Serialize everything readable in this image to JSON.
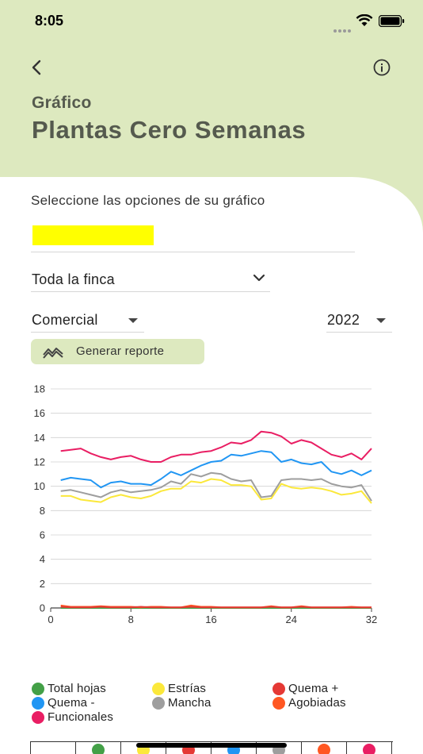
{
  "status_bar": {
    "time": "8:05"
  },
  "header": {
    "subtitle": "Gráfico",
    "title": "Plantas Cero Semanas"
  },
  "form": {
    "section_label": "Seleccione las opciones de su gráfico",
    "finca": "Toda la finca",
    "type": "Comercial",
    "year": "2022",
    "report_button": "Generar reporte"
  },
  "colors": {
    "accent": "#dde9bf",
    "total_hojas": "#43a047",
    "estrias": "#fbe83b",
    "quema_plus": "#e53935",
    "quema_minus": "#2196f3",
    "mancha": "#9e9e9e",
    "agobiadas": "#ff5722",
    "funcionales": "#e91e63"
  },
  "icons": {
    "back": "back-arrow-icon",
    "info": "info-icon",
    "finca_dropdown": "chevron-down-icon",
    "report": "chart-zigzag-icon"
  },
  "legend": [
    {
      "label": "Total hojas",
      "color": "#43a047"
    },
    {
      "label": "Estrías",
      "color": "#fbe83b"
    },
    {
      "label": "Quema +",
      "color": "#e53935"
    },
    {
      "label": "Quema -",
      "color": "#2196f3"
    },
    {
      "label": "Mancha",
      "color": "#9e9e9e"
    },
    {
      "label": "Agobiadas",
      "color": "#ff5722"
    },
    {
      "label": "Funcionales",
      "color": "#e91e63"
    }
  ],
  "table_dots": [
    "#43a047",
    "#fbe83b",
    "#e53935",
    "#2196f3",
    "#9e9e9e",
    "#ff5722",
    "#e91e63"
  ],
  "chart_data": {
    "type": "line",
    "title": "",
    "xlabel": "",
    "ylabel": "",
    "xlim": [
      0,
      32
    ],
    "ylim": [
      0,
      18
    ],
    "xticks": [
      0,
      8,
      16,
      24,
      32
    ],
    "yticks": [
      0,
      2,
      4,
      6,
      8,
      10,
      12,
      14,
      16,
      18
    ],
    "grid": true,
    "x": [
      1,
      2,
      3,
      4,
      5,
      6,
      7,
      8,
      9,
      10,
      11,
      12,
      13,
      14,
      15,
      16,
      17,
      18,
      19,
      20,
      21,
      22,
      23,
      24,
      25,
      26,
      27,
      28,
      29,
      30,
      31,
      32
    ],
    "series": [
      {
        "name": "Funcionales",
        "color": "#e91e63",
        "values": [
          12.9,
          13.0,
          13.1,
          12.7,
          12.4,
          12.2,
          12.4,
          12.5,
          12.2,
          12.0,
          12.0,
          12.4,
          12.6,
          12.6,
          12.8,
          12.9,
          13.2,
          13.6,
          13.5,
          13.8,
          14.5,
          14.4,
          14.1,
          13.5,
          13.8,
          13.6,
          13.1,
          12.6,
          12.4,
          12.7,
          12.2,
          13.1
        ]
      },
      {
        "name": "Quema -",
        "color": "#2196f3",
        "values": [
          10.5,
          10.7,
          10.6,
          10.5,
          9.9,
          10.3,
          10.4,
          10.2,
          10.2,
          10.1,
          10.6,
          11.2,
          10.9,
          11.3,
          11.7,
          12.0,
          12.1,
          12.6,
          12.5,
          12.7,
          12.9,
          12.8,
          12.0,
          12.2,
          11.9,
          11.8,
          12.0,
          11.2,
          11.0,
          11.3,
          10.9,
          11.3
        ]
      },
      {
        "name": "Mancha",
        "color": "#9e9e9e",
        "values": [
          9.6,
          9.7,
          9.5,
          9.3,
          9.1,
          9.5,
          9.7,
          9.5,
          9.6,
          9.7,
          9.9,
          10.4,
          10.2,
          11.0,
          10.8,
          11.1,
          11.0,
          10.6,
          10.4,
          10.5,
          9.1,
          9.2,
          10.5,
          10.6,
          10.6,
          10.5,
          10.6,
          10.2,
          10.0,
          9.9,
          10.1,
          8.8
        ]
      },
      {
        "name": "Estrías",
        "color": "#fbe83b",
        "values": [
          9.2,
          9.2,
          8.9,
          8.8,
          8.7,
          9.1,
          9.3,
          9.1,
          9.0,
          9.2,
          9.6,
          9.8,
          9.8,
          10.4,
          10.3,
          10.6,
          10.5,
          10.1,
          10.1,
          10.0,
          8.9,
          9.0,
          10.2,
          9.9,
          9.8,
          9.9,
          9.8,
          9.6,
          9.3,
          9.4,
          9.6,
          8.6
        ]
      },
      {
        "name": "Quema +",
        "color": "#e53935",
        "values": [
          0.1,
          0.05,
          0.05,
          0.05,
          0.1,
          0.05,
          0.05,
          0.05,
          0.1,
          0.05,
          0.05,
          0.05,
          0.05,
          0.1,
          0.05,
          0.05,
          0.05,
          0.05,
          0.05,
          0.05,
          0.05,
          0.1,
          0.05,
          0.05,
          0.1,
          0.05,
          0.05,
          0.05,
          0.05,
          0.05,
          0.05,
          0.05
        ]
      },
      {
        "name": "Agobiadas",
        "color": "#ff5722",
        "values": [
          0.2,
          0.1,
          0.1,
          0.1,
          0.15,
          0.1,
          0.1,
          0.1,
          0.05,
          0.1,
          0.1,
          0.05,
          0.05,
          0.2,
          0.1,
          0.1,
          0.05,
          0.05,
          0.05,
          0.05,
          0.05,
          0.15,
          0.05,
          0.05,
          0.15,
          0.05,
          0.05,
          0.05,
          0.05,
          0.1,
          0.05,
          0.05
        ]
      },
      {
        "name": "Total hojas",
        "color": "#43a047",
        "values": [
          0,
          0,
          0,
          0,
          0,
          0,
          0,
          0,
          0,
          0,
          0,
          0,
          0,
          0,
          0,
          0,
          0,
          0,
          0,
          0,
          0,
          0,
          0,
          0,
          0,
          0,
          0,
          0,
          0,
          0,
          0,
          0
        ]
      }
    ]
  }
}
